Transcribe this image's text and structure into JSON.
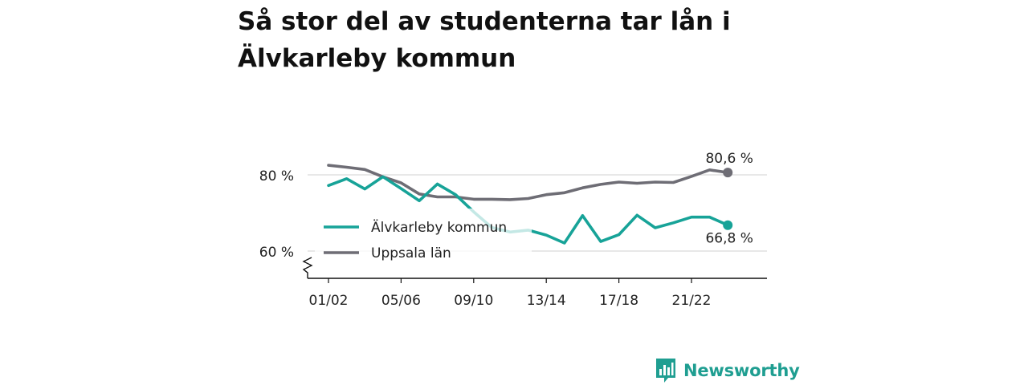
{
  "title": "Så stor del av studenterna tar lån i Älvkarleby kommun",
  "brand": {
    "name": "Newsworthy",
    "icon": "newsworthy-logo-icon"
  },
  "colors": {
    "series1": "#17a398",
    "series2": "#6e6d75",
    "grid": "#d9d9d9",
    "axis": "#111111",
    "brand": "#1f9e91"
  },
  "chart_data": {
    "type": "line",
    "x": [
      "01/02",
      "02/03",
      "03/04",
      "04/05",
      "05/06",
      "06/07",
      "07/08",
      "08/09",
      "09/10",
      "10/11",
      "11/12",
      "12/13",
      "13/14",
      "14/15",
      "15/16",
      "16/17",
      "17/18",
      "18/19",
      "19/20",
      "20/21",
      "21/22",
      "22/23",
      "23/24"
    ],
    "xticks": [
      "01/02",
      "05/06",
      "09/10",
      "13/14",
      "17/18",
      "21/22"
    ],
    "yticks": [
      {
        "value": 60,
        "label": "60 %"
      },
      {
        "value": 80,
        "label": "80 %"
      }
    ],
    "ylim": [
      53,
      87
    ],
    "y_axis_break": true,
    "grid": true,
    "legend_position": "left-center",
    "series": [
      {
        "name": "Älvkarleby kommun",
        "values": [
          77.2,
          79.0,
          76.3,
          79.5,
          76.4,
          73.2,
          77.6,
          74.8,
          70.3,
          66.2,
          65.0,
          65.5,
          64.2,
          62.1,
          69.3,
          62.5,
          64.3,
          69.4,
          66.1,
          67.4,
          68.9,
          68.9,
          66.8
        ],
        "end_label": "66,8 %"
      },
      {
        "name": "Uppsala län",
        "values": [
          82.5,
          82.0,
          81.4,
          79.5,
          77.9,
          75.0,
          74.2,
          74.2,
          73.6,
          73.6,
          73.5,
          73.8,
          74.8,
          75.3,
          76.6,
          77.5,
          78.1,
          77.8,
          78.1,
          78.0,
          79.6,
          81.3,
          80.6
        ],
        "end_label": "80,6 %"
      }
    ]
  }
}
